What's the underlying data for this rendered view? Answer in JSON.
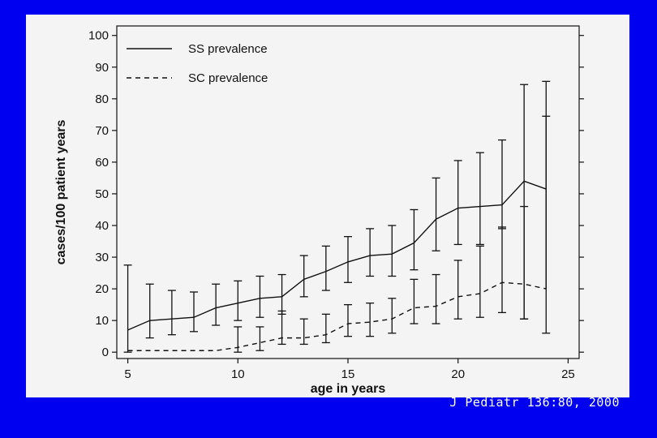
{
  "citation": "J Pediatr 136:80, 2000",
  "colors": {
    "background": "#0000f0",
    "panel": "#f4f4f4",
    "ink": "#111111",
    "citation_text": "#ffffff"
  },
  "chart_data": {
    "type": "line",
    "title": "",
    "xlabel": "age in years",
    "ylabel": "cases/100 patient years",
    "xlim": [
      4.5,
      25.5
    ],
    "ylim": [
      -2,
      103
    ],
    "xticks": [
      5,
      10,
      15,
      20,
      25
    ],
    "yticks": [
      0,
      10,
      20,
      30,
      40,
      50,
      60,
      70,
      80,
      90,
      100
    ],
    "grid": false,
    "legend_position": "top-left",
    "series": [
      {
        "name": "SS prevalence",
        "line_style": "solid",
        "x": [
          5,
          6,
          7,
          8,
          9,
          10,
          11,
          12,
          13,
          14,
          15,
          16,
          17,
          18,
          19,
          20,
          21,
          22,
          23,
          24
        ],
        "y": [
          7,
          10,
          10.5,
          11,
          14,
          15.5,
          17,
          17.5,
          23,
          25.5,
          28.5,
          30.5,
          31,
          34.5,
          42,
          45.5,
          46,
          46.5,
          54,
          51.5
        ],
        "error_low": [
          0,
          4.5,
          5.5,
          6.5,
          8.5,
          10,
          11,
          12,
          17.5,
          19.5,
          22,
          24,
          24,
          26,
          32,
          34,
          34,
          39,
          10.5,
          6
        ],
        "error_high": [
          27.5,
          21.5,
          19.5,
          19,
          21.5,
          22.5,
          24,
          24.5,
          30.5,
          33.5,
          36.5,
          39,
          40,
          45,
          55,
          60.5,
          63,
          67,
          84.5,
          85.5
        ]
      },
      {
        "name": "SC prevalence",
        "line_style": "dashed",
        "x": [
          5,
          6,
          7,
          8,
          9,
          10,
          11,
          12,
          13,
          14,
          15,
          16,
          17,
          18,
          19,
          20,
          21,
          22,
          23,
          24
        ],
        "y": [
          0.5,
          0.5,
          0.5,
          0.5,
          0.5,
          1.5,
          3,
          4.5,
          4.5,
          5.5,
          9,
          9.5,
          10.5,
          14,
          14.5,
          17.5,
          18.5,
          22,
          21.5,
          20
        ],
        "error_low": [
          null,
          null,
          null,
          null,
          null,
          0,
          0.5,
          2.5,
          2.5,
          3,
          5,
          5,
          6,
          9,
          9,
          10.5,
          11,
          12.5,
          10.5,
          null
        ],
        "error_high": [
          null,
          null,
          null,
          null,
          null,
          8,
          8,
          13,
          10.5,
          12,
          15,
          15.5,
          17,
          23,
          24.5,
          29,
          33.5,
          39.5,
          46,
          74.5
        ]
      }
    ]
  }
}
